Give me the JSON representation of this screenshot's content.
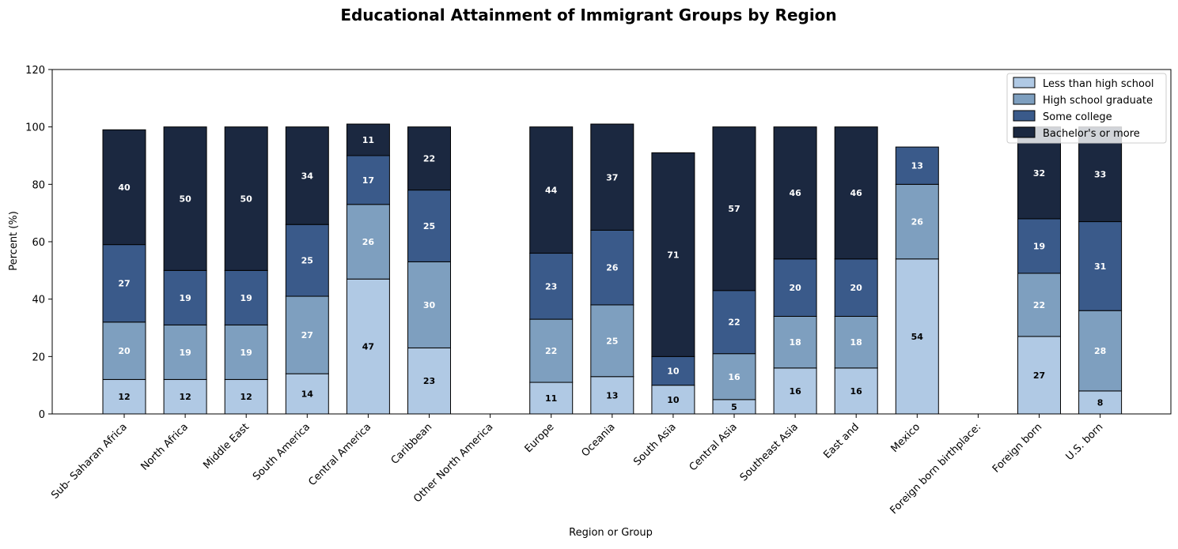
{
  "chart_data": {
    "type": "bar",
    "stacked": true,
    "title": "Educational Attainment of Immigrant Groups by Region",
    "xlabel": "Region or Group",
    "ylabel": "Percent (%)",
    "ylim": [
      0,
      120
    ],
    "yticks": [
      0,
      20,
      40,
      60,
      80,
      100,
      120
    ],
    "grid": false,
    "legend_position": "top-right",
    "categories": [
      "Sub- Saharan Africa",
      "North Africa",
      "Middle East",
      "South America",
      "Central America",
      "Caribbean",
      "Other North America",
      "Europe",
      "Oceania",
      "South Asia",
      "Central Asia",
      "Southeast Asia",
      "East and",
      "Mexico",
      "Foreign born birthplace:",
      "Foreign born",
      "U.S. born"
    ],
    "series": [
      {
        "name": "Less than high school",
        "color": "#b0c9e4",
        "label_color": "#000000",
        "values": [
          12,
          12,
          12,
          14,
          47,
          23,
          null,
          11,
          13,
          10,
          5,
          16,
          16,
          54,
          null,
          27,
          8
        ]
      },
      {
        "name": "High school graduate",
        "color": "#7e9fbf",
        "label_color": "#ffffff",
        "values": [
          20,
          19,
          19,
          27,
          26,
          30,
          null,
          22,
          25,
          null,
          16,
          18,
          18,
          26,
          null,
          22,
          28
        ]
      },
      {
        "name": "Some college",
        "color": "#3a5a8a",
        "label_color": "#ffffff",
        "values": [
          27,
          19,
          19,
          25,
          17,
          25,
          null,
          23,
          26,
          10,
          22,
          20,
          20,
          13,
          null,
          19,
          31
        ]
      },
      {
        "name": "Bachelor's or more",
        "color": "#1b2840",
        "label_color": "#ffffff",
        "values": [
          40,
          50,
          50,
          34,
          11,
          22,
          null,
          44,
          37,
          71,
          57,
          46,
          46,
          null,
          null,
          32,
          33
        ]
      }
    ]
  }
}
